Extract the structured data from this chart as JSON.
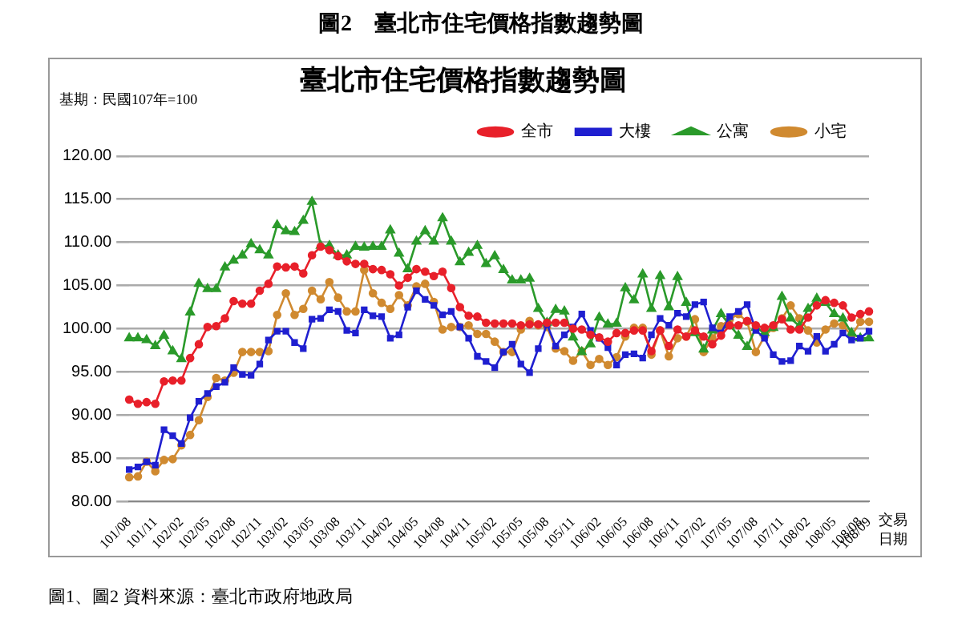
{
  "chart_data": {
    "type": "line",
    "title": "圖2　臺北市住宅價格指數趨勢圖",
    "subtitle": "臺北市住宅價格指數趨勢圖",
    "xlabel": "交易日期",
    "annotations": [
      "基期：民國107年=100",
      "圖1、圖2 資料來源：臺北市政府地政局"
    ],
    "categories": [
      "101/08",
      null,
      null,
      "101/11",
      null,
      null,
      "102/02",
      null,
      null,
      "102/05",
      null,
      null,
      "102/08",
      null,
      null,
      "102/11",
      null,
      null,
      "103/02",
      null,
      null,
      "103/05",
      null,
      null,
      "103/08",
      null,
      null,
      "103/11",
      null,
      null,
      "104/02",
      null,
      null,
      "104/05",
      null,
      null,
      "104/08",
      null,
      null,
      "104/11",
      null,
      null,
      "105/02",
      null,
      null,
      "105/05",
      null,
      null,
      "105/08",
      null,
      null,
      "105/11",
      null,
      null,
      "106/02",
      null,
      null,
      "106/05",
      null,
      null,
      "106/08",
      null,
      null,
      "106/11",
      null,
      null,
      "107/02",
      null,
      null,
      "107/05",
      null,
      null,
      "107/08",
      null,
      null,
      "107/11",
      null,
      null,
      "108/02",
      null,
      null,
      "108/05",
      null,
      null,
      "108/08",
      "108/09"
    ],
    "series": [
      {
        "name": "全市",
        "color": "#e8202a",
        "marker": "circle",
        "values": [
          91.8,
          91.3,
          91.5,
          91.3,
          93.9,
          94,
          94,
          96.6,
          98.2,
          100.2,
          100.3,
          101.2,
          103.2,
          102.9,
          102.9,
          104.4,
          105.2,
          107.2,
          107.1,
          107.2,
          106.4,
          108.5,
          109.5,
          109.1,
          108.4,
          107.8,
          107.5,
          107.5,
          106.9,
          106.8,
          106.3,
          105.0,
          105.9,
          106.9,
          106.6,
          106.1,
          106.6,
          104.7,
          102.5,
          101.5,
          101.4,
          100.7,
          100.6,
          100.6,
          100.6,
          100.4,
          100.5,
          100.5,
          100.7,
          100.7,
          100.7,
          100.0,
          99.9,
          99.3,
          99.0,
          98.5,
          99.5,
          99.5,
          99.8,
          99.8,
          97.4,
          99.8,
          98.0,
          99.9,
          99.1,
          99.8,
          99.1,
          98.2,
          99.2,
          100.4,
          100.4,
          100.9,
          100.4,
          100.1,
          100.4,
          101.1,
          99.9,
          99.9,
          101.3,
          102.7,
          103.3,
          103.0,
          102.7,
          101.3,
          101.7,
          102.0
        ]
      },
      {
        "name": "大樓",
        "color": "#1f1fd0",
        "marker": "square",
        "values": [
          83.7,
          84,
          84.6,
          84.2,
          88.3,
          87.6,
          86.7,
          89.7,
          91.6,
          92.5,
          93.3,
          93.8,
          95.5,
          94.7,
          94.6,
          95.9,
          98.7,
          99.7,
          99.7,
          98.4,
          97.7,
          101.1,
          101.2,
          102.2,
          102,
          99.8,
          99.5,
          102.2,
          101.5,
          101.4,
          98.9,
          99.3,
          102.5,
          104.4,
          103.4,
          102.7,
          101.6,
          102.0,
          100.2,
          98.9,
          96.8,
          96.2,
          95.5,
          97.3,
          98.2,
          95.9,
          94.9,
          97.7,
          100.5,
          98.0,
          99.3,
          100.2,
          101.7,
          99.8,
          98.9,
          97.8,
          95.8,
          97.0,
          97.1,
          96.6,
          99.3,
          101.2,
          100.4,
          101.8,
          101.4,
          102.8,
          103.1,
          100.1,
          99.5,
          101.4,
          102.0,
          102.8,
          99.8,
          98.9,
          97.0,
          96.2,
          96.3,
          98.0,
          97.4,
          99.1,
          97.4,
          98.2,
          99.5,
          98.7,
          98.9,
          99.7
        ]
      },
      {
        "name": "公寓",
        "color": "#2a9a2a",
        "marker": "triangle",
        "values": [
          98.9,
          98.9,
          98.7,
          98.0,
          99.2,
          97.4,
          96.5,
          101.9,
          105.2,
          104.6,
          104.6,
          107.1,
          107.9,
          108.5,
          109.8,
          109.1,
          108.5,
          112,
          111.3,
          111.2,
          112.5,
          114.7,
          109.6,
          109.6,
          108.5,
          108.5,
          109.5,
          109.4,
          109.5,
          109.5,
          111.4,
          108.7,
          106.9,
          110.1,
          111.3,
          110.1,
          112.8,
          110.1,
          107.7,
          108.8,
          109.6,
          107.5,
          108.4,
          106.8,
          105.6,
          105.6,
          105.8,
          102.3,
          100.7,
          102.2,
          102.0,
          99.0,
          97.3,
          98.2,
          101.3,
          100.5,
          100.6,
          104.7,
          103.3,
          106.3,
          102.3,
          106.1,
          102.5,
          106.0,
          103.0,
          99.5,
          97.6,
          99.8,
          101.7,
          100.4,
          99.2,
          97.9,
          100.1,
          99.5,
          100.1,
          103.7,
          101.2,
          100.3,
          102.3,
          103.5,
          103.0,
          101.7,
          101.2,
          99.5,
          98.9,
          98.9
        ]
      },
      {
        "name": "小宅",
        "color": "#d08a30",
        "marker": "circle",
        "values": [
          82.8,
          82.9,
          84.6,
          83.5,
          84.8,
          84.9,
          86.5,
          87.7,
          89.4,
          92.1,
          94.3,
          94.0,
          94.9,
          97.3,
          97.3,
          97.3,
          97.4,
          101.6,
          104.1,
          101.6,
          102.3,
          104.4,
          103.4,
          105.4,
          103.6,
          102.0,
          102.0,
          106.8,
          104.1,
          103,
          102.3,
          103.9,
          102.7,
          104.9,
          105.2,
          103.1,
          99.9,
          100.2,
          100.2,
          100.4,
          99.4,
          99.4,
          98.5,
          97.3,
          97.3,
          99.9,
          100.9,
          100.4,
          100.2,
          97.7,
          97.4,
          96.3,
          97.4,
          95.8,
          96.5,
          95.8,
          96.7,
          99.1,
          100.1,
          100.1,
          97.0,
          99.8,
          96.8,
          98.9,
          99.1,
          101.1,
          97.3,
          98.9,
          100.3,
          101.1,
          101.7,
          100.8,
          97.3,
          99.1,
          100.1,
          101.2,
          102.7,
          101.2,
          99.8,
          98.4,
          99.9,
          100.6,
          100.4,
          99.2,
          100.8,
          100.8
        ]
      }
    ],
    "ylim": [
      80,
      120
    ],
    "yticks": [
      {
        "value": 80,
        "label": "80.00"
      },
      {
        "value": 85,
        "label": "85.00"
      },
      {
        "value": 90,
        "label": "90.00"
      },
      {
        "value": 95,
        "label": "95.00"
      },
      {
        "value": 100,
        "label": "100.00"
      },
      {
        "value": 105,
        "label": "105.00"
      },
      {
        "value": 110,
        "label": "110.00"
      },
      {
        "value": 115,
        "label": "115.00"
      },
      {
        "value": 120,
        "label": "120.00"
      }
    ],
    "grid": "y",
    "legend": "top right",
    "line_style": "solid"
  }
}
